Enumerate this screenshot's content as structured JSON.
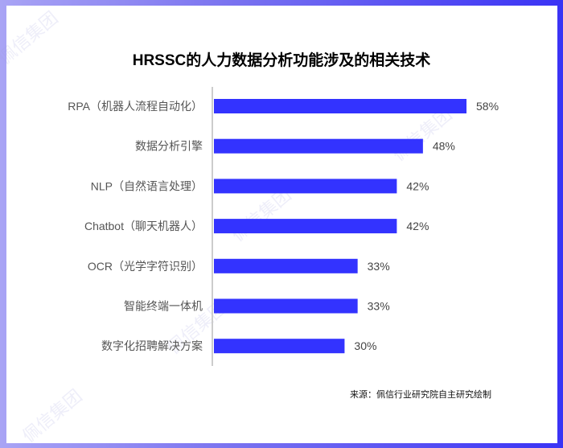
{
  "chart_data": {
    "type": "bar",
    "orientation": "horizontal",
    "title": "HRSSC的人力数据分析功能涉及的相关技术",
    "categories": [
      "RPA（机器人流程自动化）",
      "数据分析引擎",
      "NLP（自然语言处理）",
      "Chatbot（聊天机器人）",
      "OCR（光学字符识别）",
      "智能终端一体机",
      "数字化招聘解决方案"
    ],
    "values": [
      58,
      48,
      42,
      42,
      33,
      33,
      30
    ],
    "data_labels": [
      "58%",
      "48%",
      "42%",
      "42%",
      "33%",
      "33%",
      "30%"
    ],
    "unit": "%",
    "xlim": [
      0,
      60
    ],
    "grid": false,
    "bar_color": "#3333ff"
  },
  "source": "来源：佩信行业研究院自主研究绘制",
  "watermark": "佩信集团"
}
